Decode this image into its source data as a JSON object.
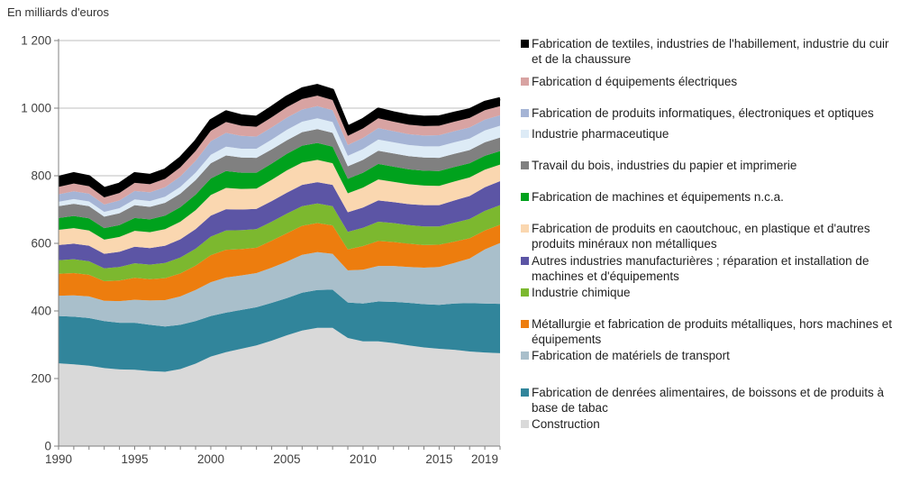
{
  "header": {
    "title": "En milliards d'euros"
  },
  "chart_data": {
    "type": "area",
    "stacked": true,
    "title": "En milliards d'euros",
    "ylabel": "",
    "xlabel": "",
    "ylim": [
      0,
      1200
    ],
    "grid": true,
    "legend_position": "right",
    "years": [
      1990,
      1991,
      1992,
      1993,
      1994,
      1995,
      1996,
      1997,
      1998,
      1999,
      2000,
      2001,
      2002,
      2003,
      2004,
      2005,
      2006,
      2007,
      2008,
      2009,
      2010,
      2011,
      2012,
      2013,
      2014,
      2015,
      2016,
      2017,
      2018,
      2019
    ],
    "ytick_labels": [
      "0",
      "200",
      "400",
      "600",
      "800",
      "1 000",
      "1 200"
    ],
    "ytick_values": [
      0,
      200,
      400,
      600,
      800,
      1000,
      1200
    ],
    "xtick_labels": [
      "1990",
      "1995",
      "2000",
      "2005",
      "2010",
      "2015",
      "2019"
    ],
    "xtick_positions": [
      0,
      5,
      10,
      15,
      20,
      25,
      29
    ],
    "top_line_color": "#000000",
    "series": [
      {
        "name": "Construction",
        "color": "#d9d9d9",
        "values": [
          245,
          242,
          238,
          231,
          227,
          226,
          222,
          220,
          228,
          244,
          265,
          278,
          288,
          298,
          312,
          328,
          342,
          350,
          350,
          320,
          310,
          310,
          305,
          298,
          292,
          288,
          285,
          280,
          277,
          275
        ]
      },
      {
        "name": "Fabrication de denrées alimentaires, de boissons et de produits à base de tabac",
        "color": "#31859b",
        "values": [
          140,
          141,
          141,
          139,
          138,
          139,
          137,
          134,
          131,
          126,
          120,
          117,
          115,
          113,
          112,
          110,
          112,
          112,
          113,
          105,
          112,
          118,
          122,
          126,
          128,
          130,
          137,
          143,
          145,
          146
        ]
      },
      {
        "name": "Fabrication de matériels de transport",
        "color": "#a9bfcb",
        "values": [
          60,
          63,
          64,
          60,
          64,
          68,
          72,
          78,
          84,
          92,
          100,
          104,
          102,
          101,
          104,
          108,
          112,
          112,
          106,
          95,
          100,
          105,
          106,
          106,
          108,
          112,
          120,
          132,
          160,
          180
        ]
      },
      {
        "name": "Métallurgie et fabrication de produits métalliques, hors machines et équipements",
        "color": "#ed7d0e",
        "values": [
          65,
          66,
          64,
          58,
          61,
          65,
          63,
          65,
          68,
          72,
          80,
          82,
          78,
          75,
          80,
          84,
          86,
          86,
          84,
          62,
          70,
          74,
          71,
          69,
          67,
          66,
          63,
          60,
          56,
          54
        ]
      },
      {
        "name": "Industrie chimique",
        "color": "#7cb82f",
        "values": [
          40,
          41,
          40,
          38,
          40,
          43,
          43,
          45,
          47,
          50,
          55,
          57,
          56,
          55,
          56,
          58,
          58,
          58,
          57,
          52,
          54,
          57,
          56,
          55,
          55,
          54,
          56,
          57,
          58,
          58
        ]
      },
      {
        "name": "Autres industries manufacturières ; réparation et installation de machines et d'équipements",
        "color": "#5c55a5",
        "values": [
          45,
          46,
          46,
          43,
          45,
          49,
          49,
          51,
          54,
          58,
          62,
          63,
          61,
          60,
          61,
          62,
          63,
          63,
          63,
          58,
          60,
          63,
          62,
          62,
          63,
          63,
          66,
          68,
          70,
          71
        ]
      },
      {
        "name": "Fabrication de produits en caoutchouc, en plastique et d'autres produits minéraux non métalliques",
        "color": "#fad7b0",
        "values": [
          45,
          46,
          45,
          42,
          44,
          47,
          47,
          49,
          52,
          56,
          61,
          63,
          61,
          60,
          63,
          66,
          66,
          66,
          64,
          56,
          59,
          62,
          60,
          59,
          58,
          57,
          56,
          55,
          52,
          49
        ]
      },
      {
        "name": "Fabrication de machines et équipements n.c.a.",
        "color": "#00a21d",
        "values": [
          35,
          36,
          36,
          34,
          35,
          38,
          38,
          40,
          43,
          46,
          49,
          50,
          48,
          47,
          48,
          49,
          50,
          50,
          49,
          43,
          44,
          46,
          45,
          44,
          44,
          44,
          43,
          42,
          41,
          40
        ]
      },
      {
        "name": "Travail du bois, industries du papier et imprimerie",
        "color": "#808080",
        "values": [
          35,
          36,
          36,
          34,
          35,
          38,
          37,
          38,
          40,
          43,
          45,
          46,
          45,
          44,
          42,
          40,
          40,
          41,
          41,
          37,
          38,
          39,
          39,
          39,
          39,
          39,
          39,
          39,
          40,
          40
        ]
      },
      {
        "name": "Industrie pharmaceutique",
        "color": "#ddebf6",
        "values": [
          13,
          14,
          14,
          14,
          15,
          17,
          17,
          18,
          20,
          22,
          25,
          26,
          26,
          27,
          29,
          31,
          31,
          32,
          32,
          31,
          32,
          33,
          33,
          33,
          33,
          34,
          34,
          34,
          35,
          35
        ]
      },
      {
        "name": "Fabrication de produits informatiques, électroniques et optiques",
        "color": "#a5b4d5",
        "values": [
          22,
          23,
          23,
          22,
          23,
          25,
          26,
          28,
          31,
          35,
          40,
          41,
          38,
          36,
          36,
          36,
          36,
          36,
          35,
          32,
          33,
          34,
          33,
          32,
          32,
          33,
          33,
          33,
          32,
          31
        ]
      },
      {
        "name": "Fabrication d équipements électriques",
        "color": "#d8a3a2",
        "values": [
          22,
          23,
          22,
          21,
          22,
          24,
          24,
          25,
          27,
          29,
          31,
          32,
          30,
          29,
          30,
          31,
          31,
          31,
          30,
          27,
          28,
          29,
          28,
          28,
          28,
          28,
          28,
          28,
          28,
          27
        ]
      },
      {
        "name": "Fabrication de textiles, industries de l'habillement, industrie du cuir et de la chaussure",
        "color": "#000000",
        "values": [
          28,
          29,
          28,
          26,
          26,
          27,
          26,
          26,
          27,
          28,
          30,
          30,
          29,
          28,
          29,
          30,
          30,
          30,
          29,
          26,
          26,
          27,
          26,
          26,
          26,
          26,
          25,
          24,
          23,
          22
        ]
      }
    ]
  }
}
